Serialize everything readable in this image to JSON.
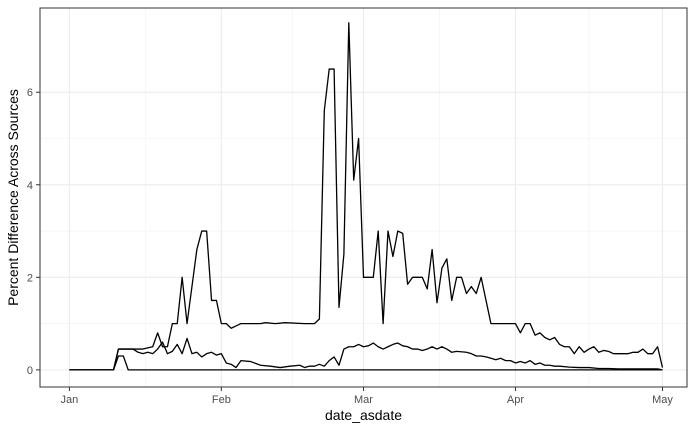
{
  "chart_data": {
    "type": "line",
    "xlabel": "date_asdate",
    "ylabel": "Percent Difference Across Sources",
    "x_ticks": [
      "Jan",
      "Feb",
      "Mar",
      "Apr",
      "May"
    ],
    "x_tick_dates": [
      "2020-01-01",
      "2020-02-01",
      "2020-03-01",
      "2020-04-01",
      "2020-05-01"
    ],
    "y_ticks": [
      0,
      2,
      4,
      6
    ],
    "xlim": [
      "2019-12-26",
      "2020-05-06"
    ],
    "ylim": [
      -0.37,
      7.82
    ],
    "grid": true,
    "legend": "none",
    "line_color": "#000000",
    "series": [
      {
        "points": [
          [
            "2020-01-01",
            0
          ],
          [
            "2020-01-10",
            0
          ],
          [
            "2020-01-11",
            0.45
          ],
          [
            "2020-01-16",
            0.45
          ],
          [
            "2020-01-18",
            0.5
          ],
          [
            "2020-01-19",
            0.8
          ],
          [
            "2020-01-20",
            0.5
          ],
          [
            "2020-01-21",
            0.5
          ],
          [
            "2020-01-22",
            1.0
          ],
          [
            "2020-01-23",
            1.0
          ],
          [
            "2020-01-24",
            2.0
          ],
          [
            "2020-01-25",
            1.0
          ],
          [
            "2020-01-26",
            1.8
          ],
          [
            "2020-01-27",
            2.6
          ],
          [
            "2020-01-28",
            3.0
          ],
          [
            "2020-01-29",
            3.0
          ],
          [
            "2020-01-30",
            1.5
          ],
          [
            "2020-01-31",
            1.5
          ],
          [
            "2020-02-01",
            1.0
          ],
          [
            "2020-02-02",
            1.0
          ],
          [
            "2020-02-03",
            0.9
          ],
          [
            "2020-02-04",
            0.95
          ],
          [
            "2020-02-05",
            1.0
          ],
          [
            "2020-02-08",
            1.0
          ],
          [
            "2020-02-09",
            1.0
          ],
          [
            "2020-02-10",
            1.02
          ],
          [
            "2020-02-12",
            1.0
          ],
          [
            "2020-02-14",
            1.02
          ],
          [
            "2020-02-18",
            1.0
          ],
          [
            "2020-02-20",
            1.0
          ],
          [
            "2020-02-21",
            1.1
          ],
          [
            "2020-02-22",
            5.6
          ],
          [
            "2020-02-23",
            6.5
          ],
          [
            "2020-02-24",
            6.5
          ],
          [
            "2020-02-25",
            1.35
          ],
          [
            "2020-02-26",
            2.5
          ],
          [
            "2020-02-27",
            7.5
          ],
          [
            "2020-02-28",
            4.1
          ],
          [
            "2020-02-29",
            5.0
          ],
          [
            "2020-03-01",
            2.0
          ],
          [
            "2020-03-02",
            2.0
          ],
          [
            "2020-03-03",
            2.0
          ],
          [
            "2020-03-04",
            3.0
          ],
          [
            "2020-03-05",
            1.0
          ],
          [
            "2020-03-06",
            3.0
          ],
          [
            "2020-03-07",
            2.45
          ],
          [
            "2020-03-08",
            3.0
          ],
          [
            "2020-03-09",
            2.95
          ],
          [
            "2020-03-10",
            1.85
          ],
          [
            "2020-03-11",
            2.0
          ],
          [
            "2020-03-12",
            2.0
          ],
          [
            "2020-03-13",
            2.0
          ],
          [
            "2020-03-14",
            1.75
          ],
          [
            "2020-03-15",
            2.6
          ],
          [
            "2020-03-16",
            1.45
          ],
          [
            "2020-03-17",
            2.2
          ],
          [
            "2020-03-18",
            2.4
          ],
          [
            "2020-03-19",
            1.5
          ],
          [
            "2020-03-20",
            2.0
          ],
          [
            "2020-03-21",
            2.0
          ],
          [
            "2020-03-22",
            1.65
          ],
          [
            "2020-03-23",
            1.8
          ],
          [
            "2020-03-24",
            1.65
          ],
          [
            "2020-03-25",
            2.0
          ],
          [
            "2020-03-26",
            1.5
          ],
          [
            "2020-03-27",
            1.0
          ],
          [
            "2020-04-01",
            1.0
          ],
          [
            "2020-04-02",
            0.8
          ],
          [
            "2020-04-03",
            1.0
          ],
          [
            "2020-04-04",
            1.0
          ],
          [
            "2020-04-05",
            0.75
          ],
          [
            "2020-04-06",
            0.8
          ],
          [
            "2020-04-07",
            0.7
          ],
          [
            "2020-04-08",
            0.65
          ],
          [
            "2020-04-09",
            0.7
          ],
          [
            "2020-04-10",
            0.55
          ],
          [
            "2020-04-11",
            0.5
          ],
          [
            "2020-04-12",
            0.5
          ],
          [
            "2020-04-13",
            0.35
          ],
          [
            "2020-04-14",
            0.5
          ],
          [
            "2020-04-15",
            0.38
          ],
          [
            "2020-04-16",
            0.45
          ],
          [
            "2020-04-17",
            0.5
          ],
          [
            "2020-04-18",
            0.38
          ],
          [
            "2020-04-19",
            0.42
          ],
          [
            "2020-04-20",
            0.4
          ],
          [
            "2020-04-21",
            0.35
          ],
          [
            "2020-04-24",
            0.35
          ],
          [
            "2020-04-25",
            0.38
          ],
          [
            "2020-04-26",
            0.38
          ],
          [
            "2020-04-27",
            0.45
          ],
          [
            "2020-04-28",
            0.35
          ],
          [
            "2020-04-29",
            0.35
          ],
          [
            "2020-04-30",
            0.5
          ],
          [
            "2020-05-01",
            0.05
          ]
        ]
      },
      {
        "points": [
          [
            "2020-01-01",
            0
          ],
          [
            "2020-01-10",
            0
          ],
          [
            "2020-01-11",
            0.45
          ],
          [
            "2020-01-14",
            0.45
          ],
          [
            "2020-01-15",
            0.38
          ],
          [
            "2020-01-16",
            0.35
          ],
          [
            "2020-01-17",
            0.38
          ],
          [
            "2020-01-18",
            0.35
          ],
          [
            "2020-01-19",
            0.45
          ],
          [
            "2020-01-20",
            0.6
          ],
          [
            "2020-01-21",
            0.35
          ],
          [
            "2020-01-22",
            0.4
          ],
          [
            "2020-01-23",
            0.55
          ],
          [
            "2020-01-24",
            0.35
          ],
          [
            "2020-01-25",
            0.68
          ],
          [
            "2020-01-26",
            0.35
          ],
          [
            "2020-01-27",
            0.38
          ],
          [
            "2020-01-28",
            0.28
          ],
          [
            "2020-01-29",
            0.35
          ],
          [
            "2020-01-30",
            0.38
          ],
          [
            "2020-01-31",
            0.32
          ],
          [
            "2020-02-01",
            0.35
          ],
          [
            "2020-02-02",
            0.15
          ],
          [
            "2020-02-03",
            0.12
          ],
          [
            "2020-02-04",
            0.05
          ],
          [
            "2020-02-05",
            0.2
          ],
          [
            "2020-02-07",
            0.18
          ],
          [
            "2020-02-09",
            0.1
          ],
          [
            "2020-02-11",
            0.08
          ],
          [
            "2020-02-13",
            0.05
          ],
          [
            "2020-02-15",
            0.08
          ],
          [
            "2020-02-17",
            0.1
          ],
          [
            "2020-02-18",
            0.05
          ],
          [
            "2020-02-19",
            0.08
          ],
          [
            "2020-02-20",
            0.08
          ],
          [
            "2020-02-21",
            0.12
          ],
          [
            "2020-02-22",
            0.08
          ],
          [
            "2020-02-23",
            0.2
          ],
          [
            "2020-02-24",
            0.28
          ],
          [
            "2020-02-25",
            0.1
          ],
          [
            "2020-02-26",
            0.45
          ],
          [
            "2020-02-27",
            0.5
          ],
          [
            "2020-02-28",
            0.5
          ],
          [
            "2020-02-29",
            0.55
          ],
          [
            "2020-03-01",
            0.5
          ],
          [
            "2020-03-02",
            0.52
          ],
          [
            "2020-03-03",
            0.58
          ],
          [
            "2020-03-04",
            0.5
          ],
          [
            "2020-03-05",
            0.45
          ],
          [
            "2020-03-06",
            0.5
          ],
          [
            "2020-03-07",
            0.55
          ],
          [
            "2020-03-08",
            0.58
          ],
          [
            "2020-03-09",
            0.52
          ],
          [
            "2020-03-10",
            0.5
          ],
          [
            "2020-03-11",
            0.45
          ],
          [
            "2020-03-12",
            0.45
          ],
          [
            "2020-03-13",
            0.42
          ],
          [
            "2020-03-14",
            0.45
          ],
          [
            "2020-03-15",
            0.5
          ],
          [
            "2020-03-16",
            0.45
          ],
          [
            "2020-03-17",
            0.5
          ],
          [
            "2020-03-18",
            0.45
          ],
          [
            "2020-03-19",
            0.38
          ],
          [
            "2020-03-20",
            0.4
          ],
          [
            "2020-03-22",
            0.38
          ],
          [
            "2020-03-23",
            0.35
          ],
          [
            "2020-03-24",
            0.3
          ],
          [
            "2020-03-25",
            0.3
          ],
          [
            "2020-03-26",
            0.28
          ],
          [
            "2020-03-27",
            0.25
          ],
          [
            "2020-03-28",
            0.22
          ],
          [
            "2020-03-29",
            0.25
          ],
          [
            "2020-03-30",
            0.2
          ],
          [
            "2020-03-31",
            0.2
          ],
          [
            "2020-04-01",
            0.15
          ],
          [
            "2020-04-02",
            0.18
          ],
          [
            "2020-04-03",
            0.15
          ],
          [
            "2020-04-04",
            0.2
          ],
          [
            "2020-04-05",
            0.12
          ],
          [
            "2020-04-06",
            0.15
          ],
          [
            "2020-04-07",
            0.1
          ],
          [
            "2020-04-08",
            0.1
          ],
          [
            "2020-04-09",
            0.08
          ],
          [
            "2020-04-10",
            0.08
          ],
          [
            "2020-04-12",
            0.06
          ],
          [
            "2020-04-14",
            0.05
          ],
          [
            "2020-04-16",
            0.05
          ],
          [
            "2020-04-18",
            0.03
          ],
          [
            "2020-04-20",
            0.03
          ],
          [
            "2020-04-22",
            0.02
          ],
          [
            "2020-04-24",
            0.02
          ],
          [
            "2020-04-26",
            0.02
          ],
          [
            "2020-04-28",
            0.02
          ],
          [
            "2020-04-30",
            0.02
          ],
          [
            "2020-05-01",
            0.0
          ]
        ]
      },
      {
        "points": [
          [
            "2020-01-01",
            0
          ],
          [
            "2020-01-10",
            0
          ],
          [
            "2020-01-11",
            0.3
          ],
          [
            "2020-01-12",
            0.3
          ],
          [
            "2020-01-13",
            0.0
          ],
          [
            "2020-05-01",
            0
          ]
        ]
      }
    ]
  }
}
